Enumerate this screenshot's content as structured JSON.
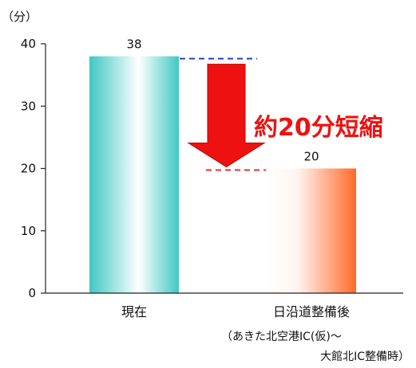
{
  "chart_data": {
    "type": "bar",
    "unit_label": "（分）",
    "ylim": [
      0,
      40
    ],
    "yticks": [
      0,
      10,
      20,
      30,
      40
    ],
    "categories": [
      "現在",
      "日沿道整備後"
    ],
    "category_notes": [
      "",
      "（あきた北空港IC(仮)～\n大館北IC整備時）"
    ],
    "values": [
      38,
      20
    ],
    "value_labels": [
      "38",
      "20"
    ],
    "bar_colors": [
      "#3fc8c3",
      "#ff6a2a"
    ],
    "annotation": "約20分短縮",
    "annotation_color": "#ee1111",
    "reference_line_colors": [
      "#2a3fd0",
      "#e83030"
    ],
    "grid": false
  }
}
